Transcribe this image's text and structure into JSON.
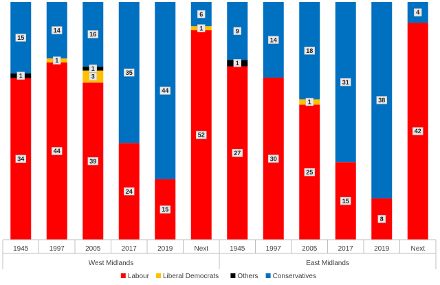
{
  "chart_data": {
    "type": "bar",
    "stacked": true,
    "groups": [
      "West Midlands",
      "East Midlands"
    ],
    "categories": [
      "1945",
      "1997",
      "2005",
      "2017",
      "2019",
      "Next",
      "1945",
      "1997",
      "2005",
      "2017",
      "2019",
      "Next"
    ],
    "series": [
      {
        "name": "Labour",
        "color": "#ff0000",
        "values": [
          34,
          44,
          39,
          24,
          15,
          52,
          27,
          30,
          25,
          15,
          8,
          42
        ]
      },
      {
        "name": "Liberal Democrats",
        "color": "#ffc000",
        "values": [
          0,
          1,
          3,
          0,
          0,
          1,
          0,
          0,
          1,
          0,
          0,
          0
        ]
      },
      {
        "name": "Others",
        "color": "#000000",
        "values": [
          1,
          0,
          1,
          0,
          0,
          0,
          1,
          0,
          0,
          0,
          0,
          0
        ]
      },
      {
        "name": "Conservatives",
        "color": "#0070c0",
        "values": [
          15,
          14,
          16,
          35,
          44,
          6,
          9,
          14,
          18,
          31,
          38,
          4
        ]
      }
    ],
    "legend_position": "bottom",
    "grid": false,
    "data_labels": true
  }
}
